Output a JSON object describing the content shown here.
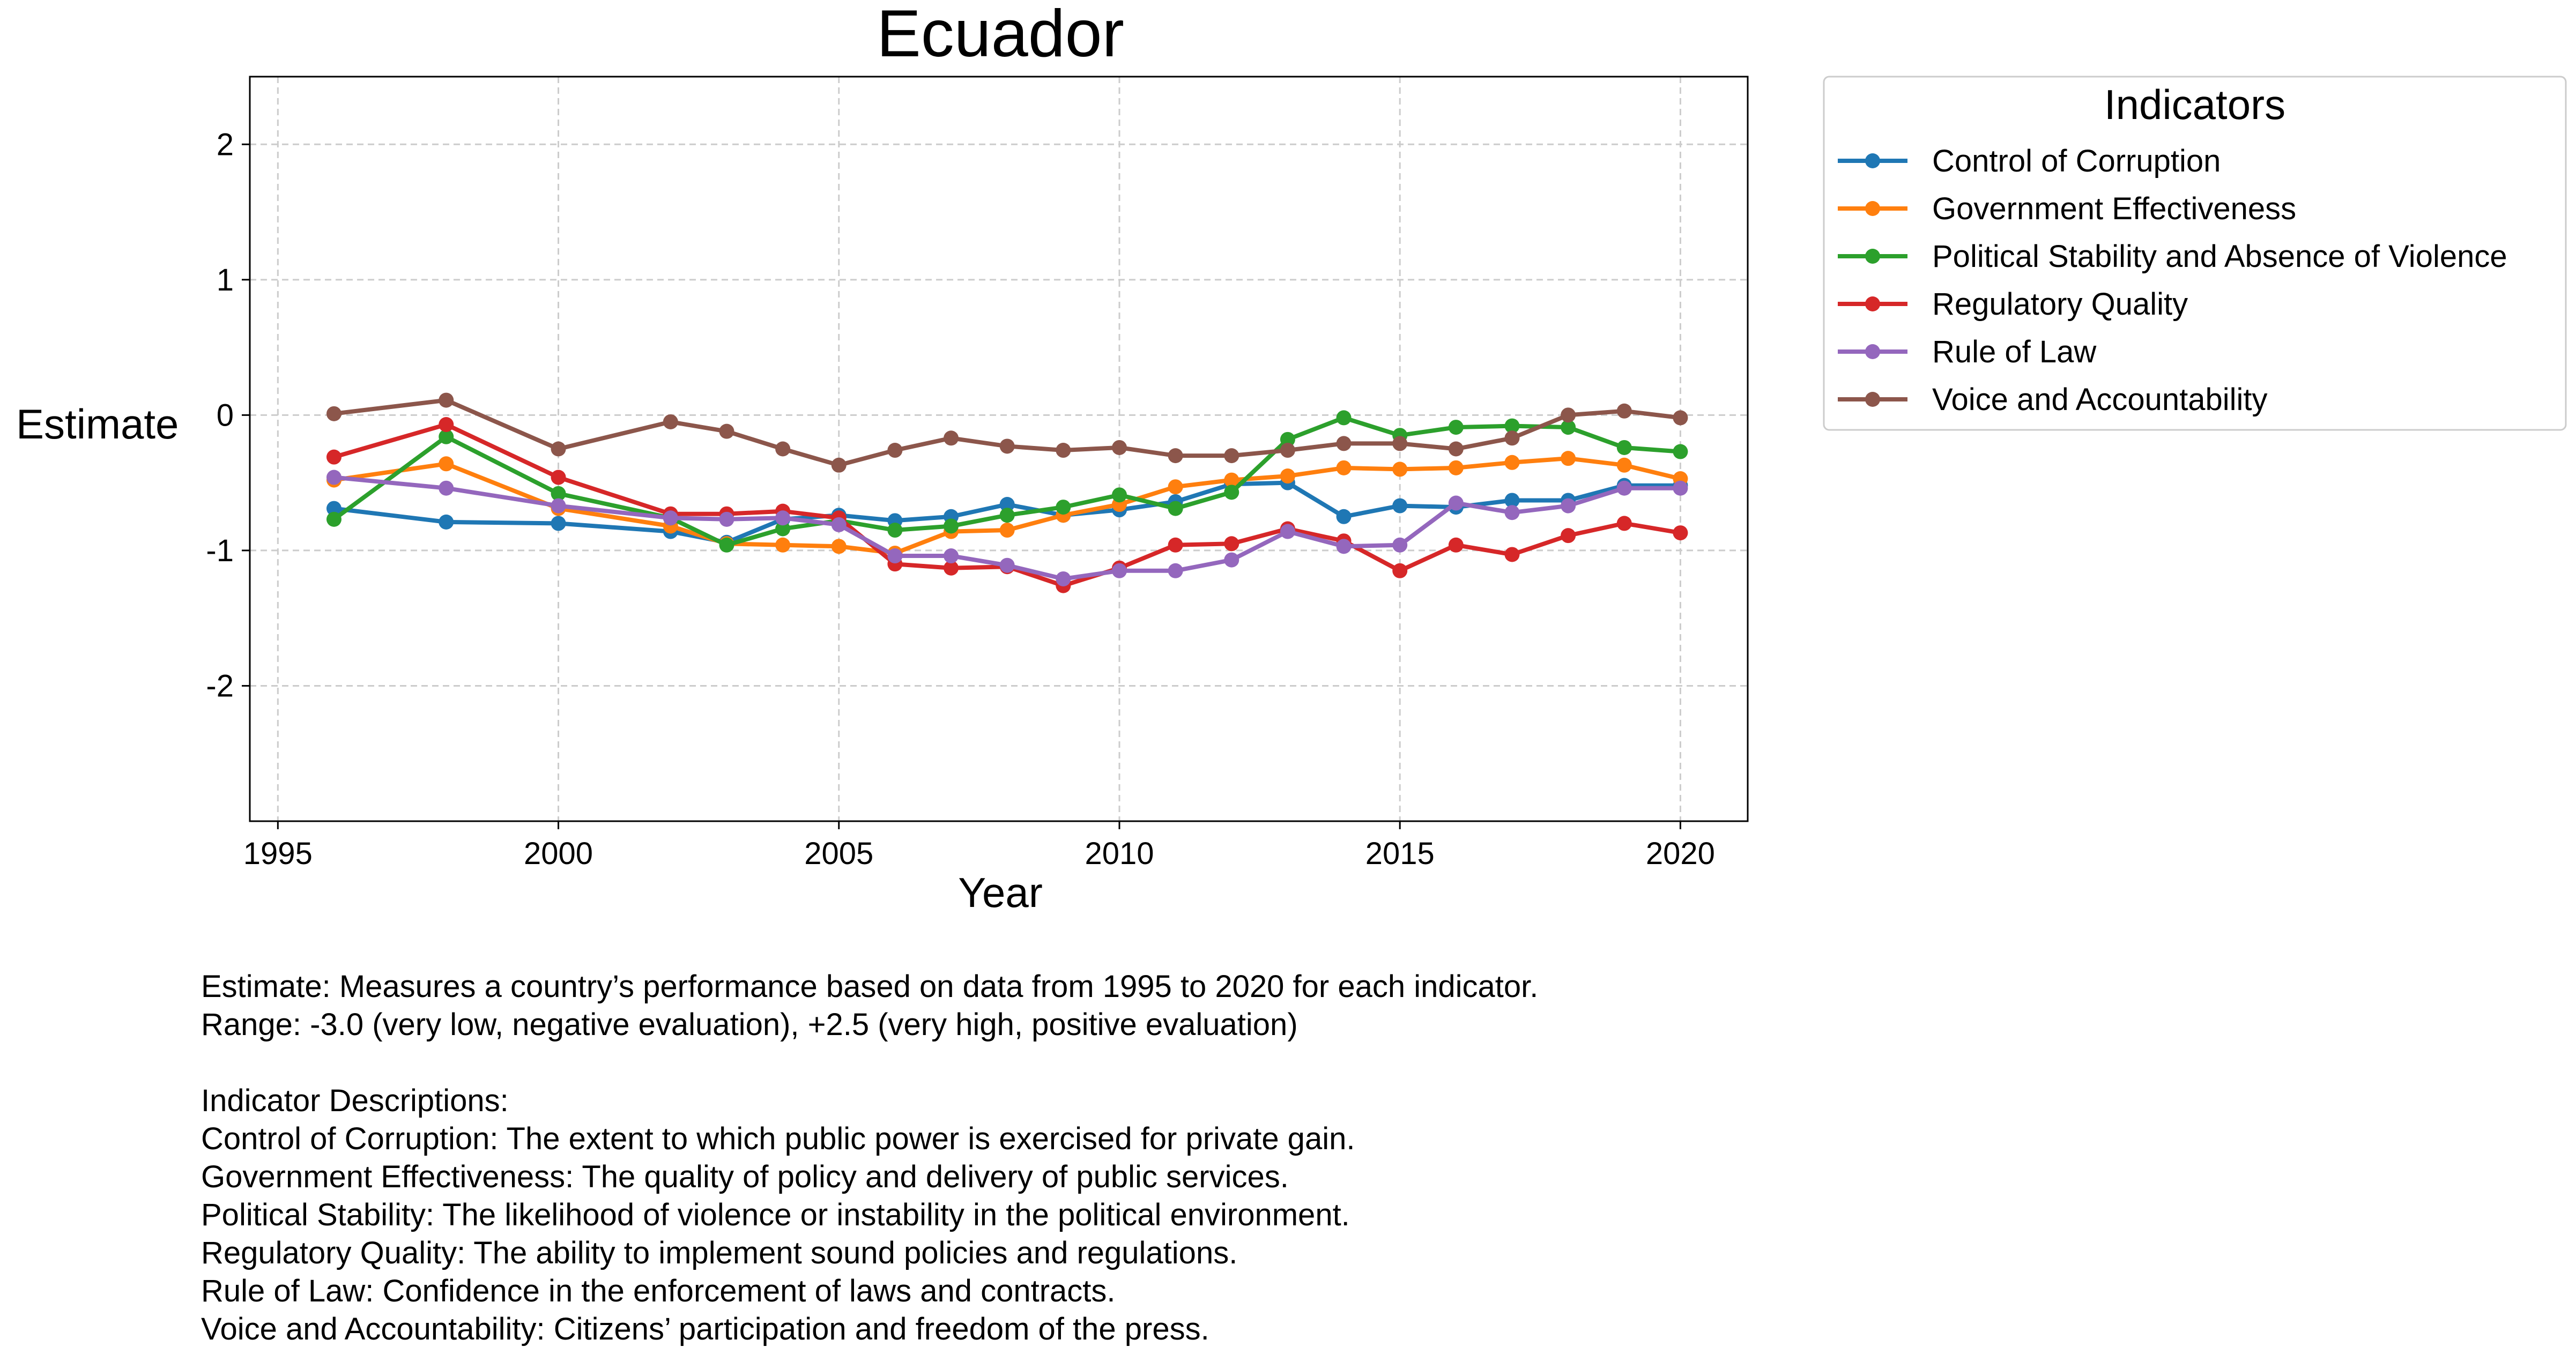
{
  "chart_data": {
    "type": "line",
    "title": "Ecuador",
    "xlabel": "Year",
    "ylabel": "Estimate",
    "xlim": [
      1994.5,
      2021.2
    ],
    "ylim": [
      -3.0,
      2.5
    ],
    "xticks": [
      1995,
      2000,
      2005,
      2010,
      2015,
      2020
    ],
    "yticks": [
      -2,
      -1,
      0,
      1,
      2
    ],
    "grid": true,
    "legend": {
      "title": "Indicators",
      "placement": "outside-top-right"
    },
    "x": [
      1996,
      1998,
      2000,
      2002,
      2003,
      2004,
      2005,
      2006,
      2007,
      2008,
      2009,
      2010,
      2011,
      2012,
      2013,
      2014,
      2015,
      2016,
      2017,
      2018,
      2019,
      2020
    ],
    "series": [
      {
        "name": "Control of Corruption",
        "color": "#1f77b4",
        "values": [
          -0.69,
          -0.79,
          -0.8,
          -0.86,
          -0.94,
          -0.77,
          -0.74,
          -0.78,
          -0.75,
          -0.66,
          -0.74,
          -0.7,
          -0.64,
          -0.51,
          -0.5,
          -0.75,
          -0.67,
          -0.68,
          -0.63,
          -0.63,
          -0.52,
          -0.52
        ]
      },
      {
        "name": "Government Effectiveness",
        "color": "#ff7f0e",
        "values": [
          -0.48,
          -0.36,
          -0.69,
          -0.82,
          -0.95,
          -0.96,
          -0.97,
          -1.02,
          -0.86,
          -0.85,
          -0.74,
          -0.66,
          -0.53,
          -0.48,
          -0.45,
          -0.39,
          -0.4,
          -0.39,
          -0.35,
          -0.32,
          -0.37,
          -0.47
        ]
      },
      {
        "name": "Political Stability and Absence of Violence",
        "color": "#2ca02c",
        "values": [
          -0.77,
          -0.16,
          -0.58,
          -0.76,
          -0.96,
          -0.84,
          -0.78,
          -0.85,
          -0.82,
          -0.74,
          -0.68,
          -0.59,
          -0.69,
          -0.57,
          -0.18,
          -0.02,
          -0.15,
          -0.09,
          -0.08,
          -0.09,
          -0.24,
          -0.27
        ]
      },
      {
        "name": "Regulatory Quality",
        "color": "#d62728",
        "values": [
          -0.31,
          -0.07,
          -0.46,
          -0.73,
          -0.73,
          -0.71,
          -0.76,
          -1.1,
          -1.13,
          -1.12,
          -1.26,
          -1.13,
          -0.96,
          -0.95,
          -0.84,
          -0.93,
          -1.15,
          -0.96,
          -1.03,
          -0.89,
          -0.8,
          -0.87
        ]
      },
      {
        "name": "Rule of Law",
        "color": "#9467bd",
        "values": [
          -0.46,
          -0.54,
          -0.67,
          -0.76,
          -0.77,
          -0.76,
          -0.81,
          -1.04,
          -1.04,
          -1.11,
          -1.21,
          -1.15,
          -1.15,
          -1.07,
          -0.86,
          -0.97,
          -0.96,
          -0.65,
          -0.72,
          -0.67,
          -0.54,
          -0.54
        ]
      },
      {
        "name": "Voice and Accountability",
        "color": "#8c564b",
        "values": [
          0.01,
          0.11,
          -0.25,
          -0.05,
          -0.12,
          -0.25,
          -0.37,
          -0.26,
          -0.17,
          -0.23,
          -0.26,
          -0.24,
          -0.3,
          -0.3,
          -0.26,
          -0.21,
          -0.21,
          -0.25,
          -0.17,
          0.0,
          0.03,
          -0.02
        ]
      }
    ]
  },
  "footnote": {
    "lines": [
      "Estimate: Measures a country’s performance based on data from 1995 to 2020 for each indicator.",
      "Range: -3.0 (very low, negative evaluation), +2.5 (very high, positive evaluation)",
      "",
      "Indicator Descriptions:",
      "Control of Corruption: The extent to which public power is exercised for private gain.",
      "Government Effectiveness: The quality of policy and delivery of public services.",
      "Political Stability: The likelihood of violence or instability in the political environment.",
      "Regulatory Quality: The ability to implement sound policies and regulations.",
      "Rule of Law: Confidence in the enforcement of laws and contracts.",
      "Voice and Accountability: Citizens’ participation and freedom of the press."
    ]
  }
}
